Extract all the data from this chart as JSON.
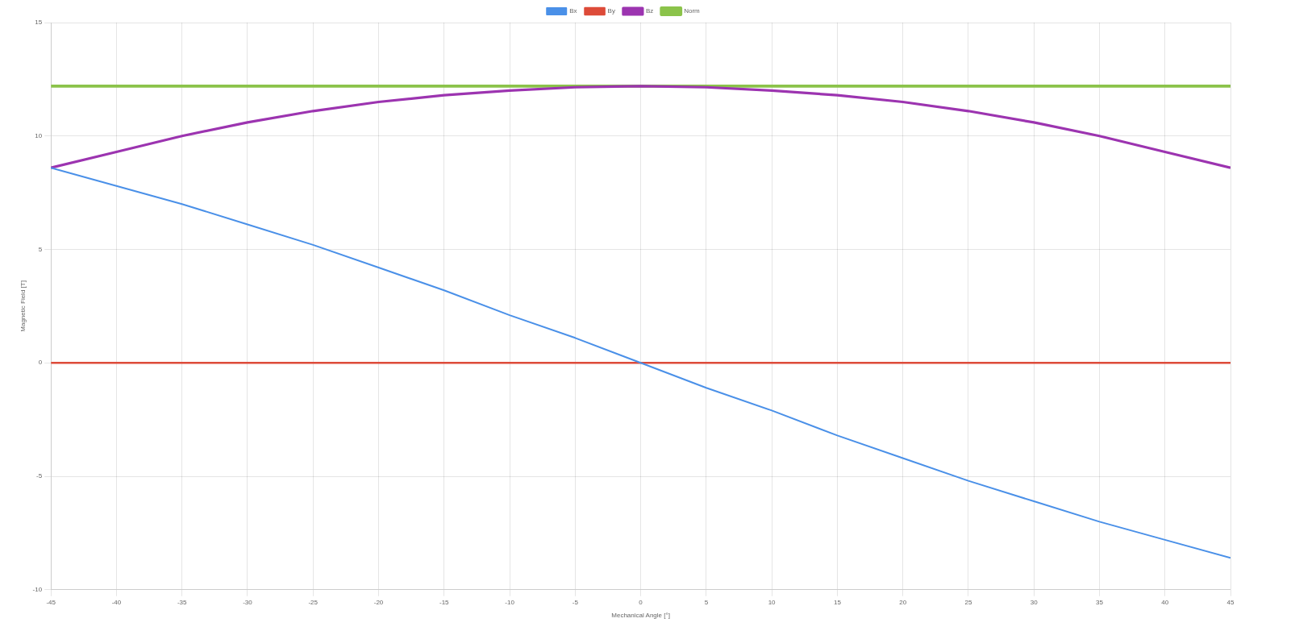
{
  "chart_data": {
    "type": "line",
    "xlabel": "Mechanical Angle [°]",
    "ylabel": "Magnetic Field [T]",
    "x": [
      -45,
      -40,
      -35,
      -30,
      -25,
      -20,
      -15,
      -10,
      -5,
      0,
      5,
      10,
      15,
      20,
      25,
      30,
      35,
      40,
      45
    ],
    "series": [
      {
        "name": "Bx",
        "color": "#4a90e8",
        "values": [
          8.6,
          7.8,
          7.0,
          6.1,
          5.2,
          4.2,
          3.2,
          2.1,
          1.1,
          0,
          -1.1,
          -2.1,
          -3.2,
          -4.2,
          -5.2,
          -6.1,
          -7.0,
          -7.8,
          -8.6
        ]
      },
      {
        "name": "By",
        "color": "#dd4b39",
        "values": [
          0,
          0,
          0,
          0,
          0,
          0,
          0,
          0,
          0,
          0,
          0,
          0,
          0,
          0,
          0,
          0,
          0,
          0,
          0
        ]
      },
      {
        "name": "Bz",
        "color": "#9c34b0",
        "values": [
          8.6,
          9.3,
          10.0,
          10.6,
          11.1,
          11.5,
          11.8,
          12.0,
          12.15,
          12.2,
          12.15,
          12.0,
          11.8,
          11.5,
          11.1,
          10.6,
          10.0,
          9.3,
          8.6
        ]
      },
      {
        "name": "Norm",
        "color": "#8bc34a",
        "values": [
          12.2,
          12.2,
          12.2,
          12.2,
          12.2,
          12.2,
          12.2,
          12.2,
          12.2,
          12.2,
          12.2,
          12.2,
          12.2,
          12.2,
          12.2,
          12.2,
          12.2,
          12.2,
          12.2
        ]
      }
    ],
    "xlim": [
      -45,
      45
    ],
    "xticks": [
      -45,
      -40,
      -35,
      -30,
      -25,
      -20,
      -15,
      -10,
      -5,
      0,
      5,
      10,
      15,
      20,
      25,
      30,
      35,
      40,
      45
    ],
    "ylim": [
      -10,
      15
    ],
    "yticks": [
      -10,
      -5,
      0,
      5,
      10,
      15
    ],
    "grid": true,
    "legend": "top",
    "marker": "none",
    "line_style": "solid"
  }
}
